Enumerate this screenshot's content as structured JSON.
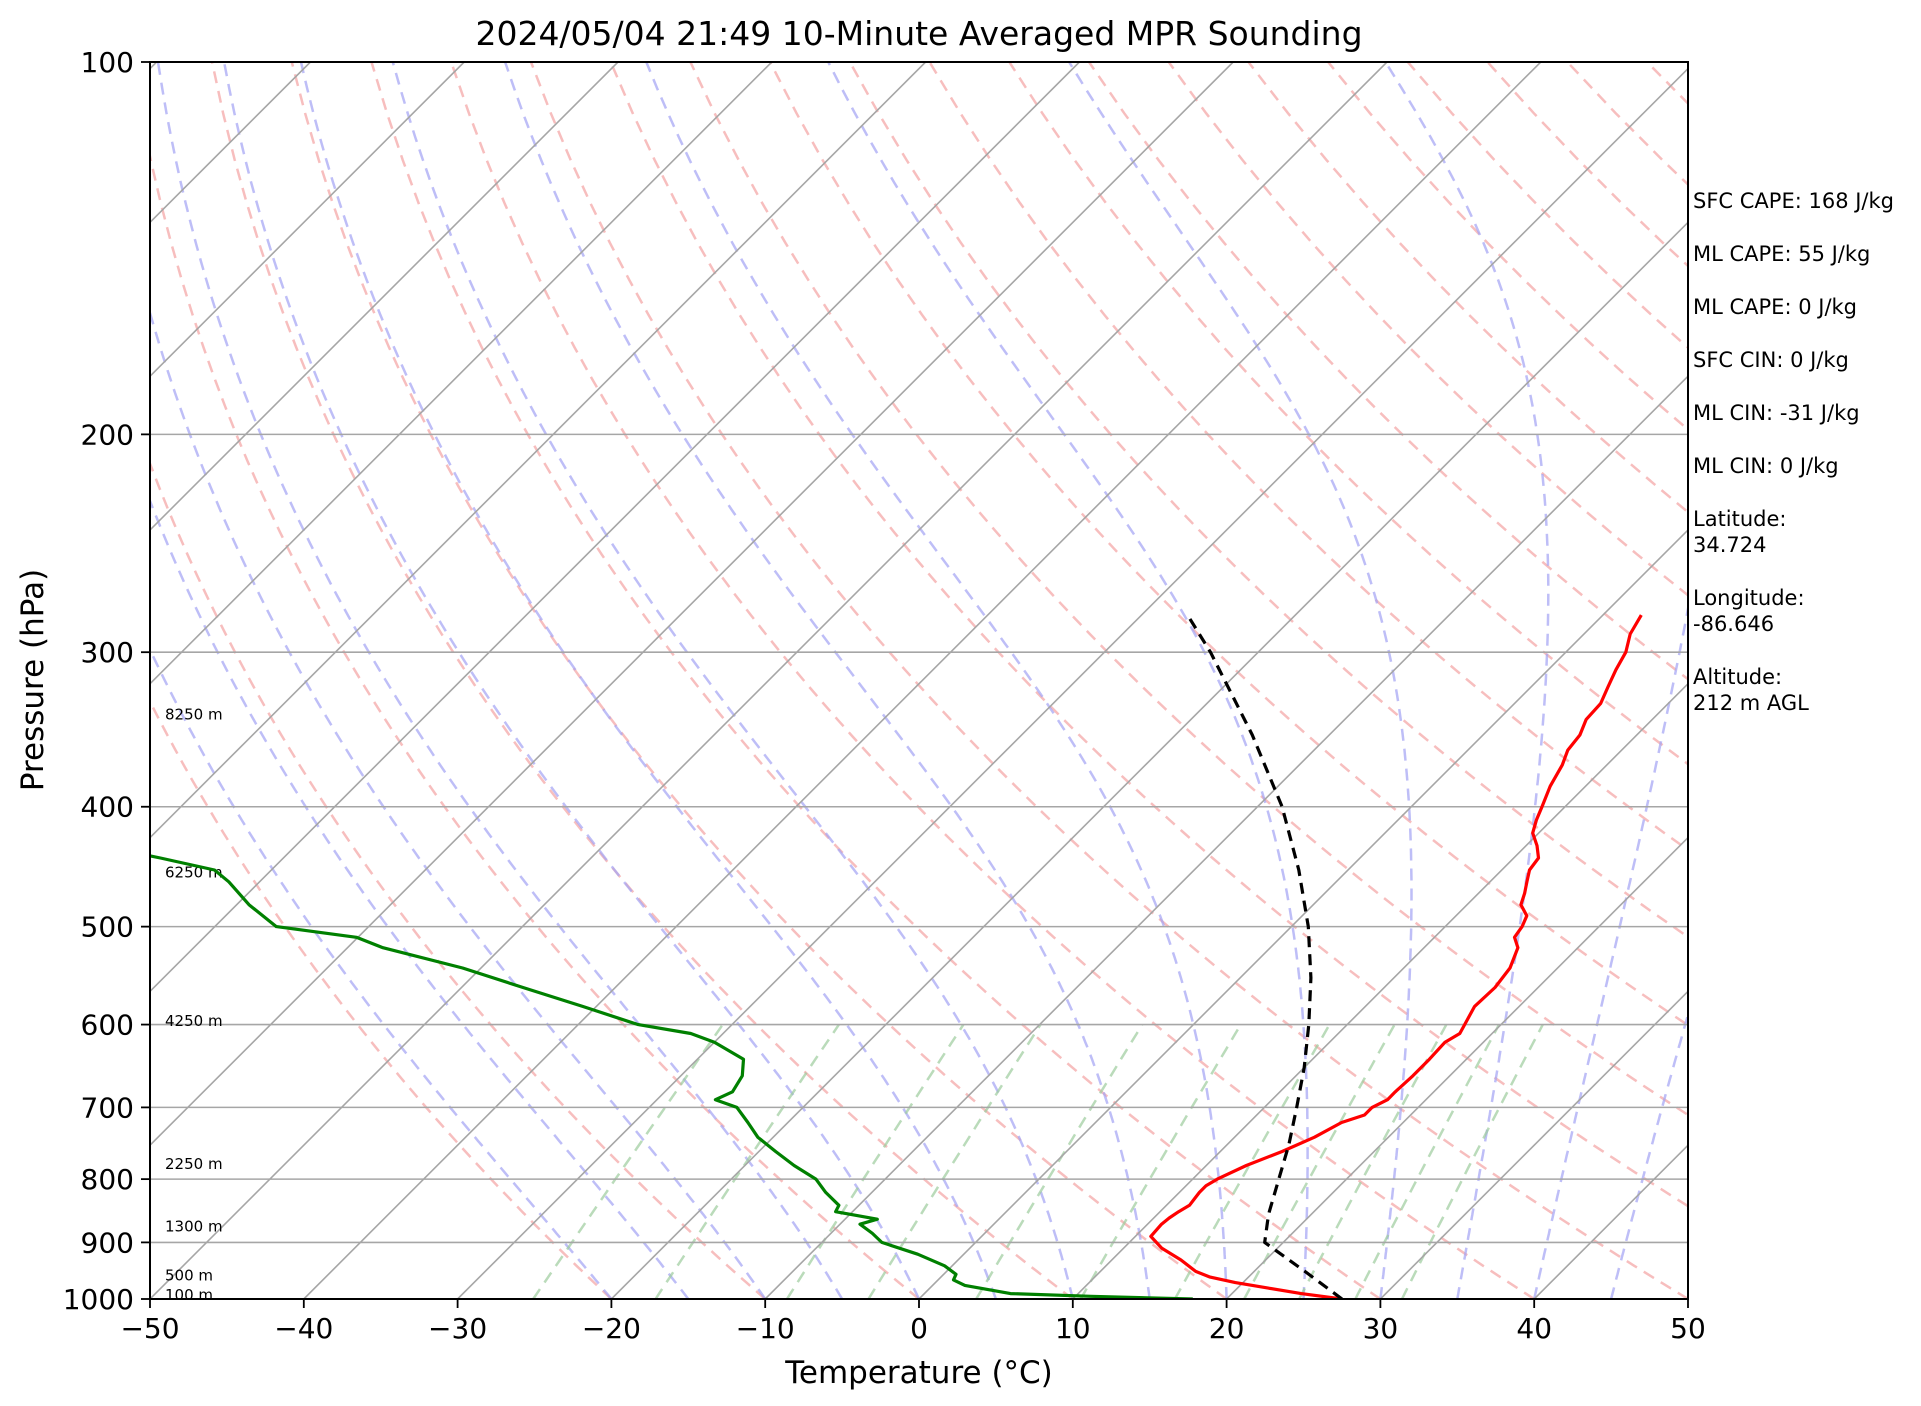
{
  "chart_data": {
    "type": "line",
    "subtype": "skew-T log-P diagram",
    "title": "2024/05/04 21:49 10-Minute Averaged MPR Sounding",
    "xlabel": "Temperature (°C)",
    "ylabel": "Pressure (hPa)",
    "xlim": [
      -50,
      50
    ],
    "ylim": [
      1000,
      100
    ],
    "y_scale": "log",
    "x_ticks": [
      "−50",
      "−40",
      "−30",
      "−20",
      "−10",
      "0",
      "10",
      "20",
      "30",
      "40",
      "50"
    ],
    "y_ticks": [
      "1000",
      "900",
      "800",
      "700",
      "600",
      "500",
      "400",
      "300",
      "200",
      "100"
    ],
    "grid": true,
    "height_labels": [
      {
        "text": "8250 m",
        "p": 337
      },
      {
        "text": "6250 m",
        "p": 452
      },
      {
        "text": "4250 m",
        "p": 596
      },
      {
        "text": "2250 m",
        "p": 778
      },
      {
        "text": "1300 m",
        "p": 874
      },
      {
        "text": "500 m",
        "p": 957
      },
      {
        "text": "100 m",
        "p": 993
      }
    ],
    "series": [
      {
        "role": "temperature",
        "color": "#ff0000",
        "points": [
          [
            1000,
            27.5
          ],
          [
            990,
            24.5
          ],
          [
            980,
            22.0
          ],
          [
            970,
            19.5
          ],
          [
            960,
            17.5
          ],
          [
            950,
            16.2
          ],
          [
            930,
            14.5
          ],
          [
            910,
            12.5
          ],
          [
            890,
            11.0
          ],
          [
            870,
            10.9
          ],
          [
            860,
            11.0
          ],
          [
            850,
            11.2
          ],
          [
            840,
            11.5
          ],
          [
            830,
            11.4
          ],
          [
            820,
            11.3
          ],
          [
            810,
            11.3
          ],
          [
            800,
            11.6
          ],
          [
            780,
            12.6
          ],
          [
            760,
            14.0
          ],
          [
            740,
            15.2
          ],
          [
            720,
            16.0
          ],
          [
            710,
            17.0
          ],
          [
            700,
            17.0
          ],
          [
            690,
            17.5
          ],
          [
            680,
            17.5
          ],
          [
            660,
            17.6
          ],
          [
            640,
            17.6
          ],
          [
            620,
            17.5
          ],
          [
            610,
            17.9
          ],
          [
            595,
            17.5
          ],
          [
            580,
            17.1
          ],
          [
            560,
            17.2
          ],
          [
            540,
            16.9
          ],
          [
            520,
            16.1
          ],
          [
            510,
            15.2
          ],
          [
            500,
            15.0
          ],
          [
            490,
            14.6
          ],
          [
            480,
            13.5
          ],
          [
            470,
            13.0
          ],
          [
            460,
            12.4
          ],
          [
            450,
            11.8
          ],
          [
            440,
            11.6
          ],
          [
            430,
            10.7
          ],
          [
            420,
            9.6
          ],
          [
            410,
            9.0
          ],
          [
            400,
            8.5
          ],
          [
            385,
            7.7
          ],
          [
            370,
            7.1
          ],
          [
            360,
            6.5
          ],
          [
            350,
            6.3
          ],
          [
            340,
            5.7
          ],
          [
            330,
            5.6
          ],
          [
            320,
            5.0
          ],
          [
            310,
            4.4
          ],
          [
            300,
            3.9
          ],
          [
            290,
            3.0
          ],
          [
            280,
            2.5
          ]
        ]
      },
      {
        "role": "dewpoint",
        "color": "#008000",
        "points": [
          [
            1000,
            17.8
          ],
          [
            995,
            11.0
          ],
          [
            990,
            5.6
          ],
          [
            975,
            2.1
          ],
          [
            965,
            1.0
          ],
          [
            955,
            0.8
          ],
          [
            940,
            -0.5
          ],
          [
            920,
            -3.0
          ],
          [
            900,
            -6.1
          ],
          [
            885,
            -7.3
          ],
          [
            870,
            -8.7
          ],
          [
            862,
            -7.9
          ],
          [
            850,
            -11.1
          ],
          [
            840,
            -11.3
          ],
          [
            820,
            -13.0
          ],
          [
            800,
            -14.5
          ],
          [
            780,
            -16.8
          ],
          [
            760,
            -18.9
          ],
          [
            740,
            -21.0
          ],
          [
            720,
            -22.6
          ],
          [
            700,
            -24.3
          ],
          [
            690,
            -26.2
          ],
          [
            680,
            -25.6
          ],
          [
            660,
            -26.0
          ],
          [
            640,
            -27.0
          ],
          [
            620,
            -30.0
          ],
          [
            610,
            -32.1
          ],
          [
            600,
            -36.1
          ],
          [
            580,
            -40.9
          ],
          [
            560,
            -46.0
          ],
          [
            540,
            -51.2
          ],
          [
            520,
            -57.7
          ],
          [
            510,
            -60.1
          ],
          [
            500,
            -66.0
          ],
          [
            480,
            -69.2
          ],
          [
            460,
            -72.0
          ],
          [
            450,
            -73.7
          ],
          [
            440,
            -78.0
          ],
          [
            430,
            -82.7
          ],
          [
            420,
            -89.6
          ],
          [
            410,
            -93.3
          ],
          [
            400,
            -95.2
          ],
          [
            385,
            -99.8
          ],
          [
            370,
            -104.5
          ],
          [
            360,
            -108.5
          ],
          [
            345,
            -113.3
          ],
          [
            335,
            -117.7
          ],
          [
            328,
            -119.4
          ],
          [
            320,
            -118.0
          ],
          [
            310,
            -121.3
          ],
          [
            300,
            -125.6
          ],
          [
            293,
            -131.9
          ],
          [
            285,
            -136.6
          ],
          [
            280,
            -136.8
          ]
        ]
      },
      {
        "role": "parcel path",
        "color": "#000000",
        "dashed": true,
        "points": [
          [
            1000,
            27.5
          ],
          [
            950,
            23.3
          ],
          [
            900,
            18.8
          ],
          [
            865,
            17.6
          ],
          [
            850,
            17.1
          ],
          [
            800,
            15.6
          ],
          [
            750,
            14.0
          ],
          [
            700,
            12.1
          ],
          [
            650,
            10.0
          ],
          [
            600,
            7.5
          ],
          [
            550,
            4.6
          ],
          [
            500,
            1.1
          ],
          [
            450,
            -3.2
          ],
          [
            400,
            -8.4
          ],
          [
            350,
            -15.0
          ],
          [
            300,
            -23.1
          ],
          [
            280,
            -27.0
          ]
        ]
      }
    ],
    "background_lines": {
      "isotherms_color": "#a6a6a6",
      "dry_adiabats_color": "#f4a3a3",
      "moist_adiabats_color": "#a3a3f4",
      "mixing_ratio_color": "#9ccc9c"
    },
    "annotations": [
      {
        "label": "SFC CAPE:",
        "value": "168 J/kg"
      },
      {
        "label": "ML CAPE:",
        "value": "55 J/kg"
      },
      {
        "label": "ML CAPE:",
        "value": "0 J/kg"
      },
      {
        "label": "SFC CIN:",
        "value": "0 J/kg"
      },
      {
        "label": "ML CIN:",
        "value": "-31 J/kg"
      },
      {
        "label": "ML CIN:",
        "value": "0 J/kg"
      },
      {
        "label": "Latitude:",
        "value": "34.724",
        "multiline": true
      },
      {
        "label": "Longitude:",
        "value": "-86.646",
        "multiline": true
      },
      {
        "label": "Altitude:",
        "value": "212 m AGL",
        "multiline": true
      }
    ]
  }
}
